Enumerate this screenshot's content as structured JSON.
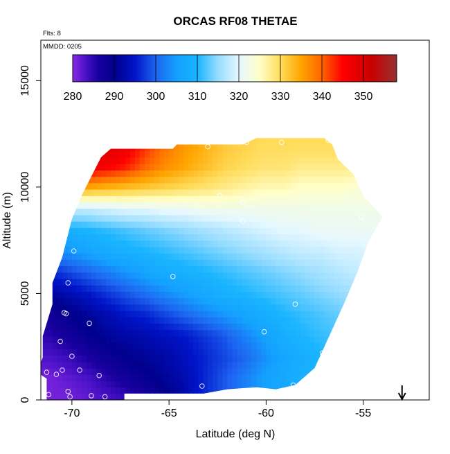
{
  "chart_data": {
    "type": "heatmap",
    "title": "ORCAS RF08 THETAE",
    "flight_note": "Flts: 8",
    "date_note": "MMDD: 0205",
    "xlabel": "Latitude (deg N)",
    "ylabel": "Altitude (m)",
    "xlim": [
      -71.6,
      -51.6
    ],
    "ylim": [
      0,
      16900
    ],
    "x_ticks": [
      -70,
      -65,
      -60,
      -55
    ],
    "x_tick_labels": [
      "-70",
      "-65",
      "-60",
      "-55"
    ],
    "y_ticks": [
      0,
      5000,
      10000,
      15000
    ],
    "y_tick_labels": [
      "0",
      "5000",
      "10000",
      "15000"
    ],
    "colorbar": {
      "range": [
        280,
        358
      ],
      "ticks": [
        280,
        290,
        300,
        310,
        320,
        330,
        340,
        350
      ],
      "tick_labels": [
        "280",
        "290",
        "300",
        "310",
        "320",
        "330",
        "340",
        "350"
      ],
      "stops": [
        {
          "v": 280,
          "c": "#8a2be2"
        },
        {
          "v": 283,
          "c": "#4b12c8"
        },
        {
          "v": 286,
          "c": "#1a00a0"
        },
        {
          "v": 290,
          "c": "#00008c"
        },
        {
          "v": 295,
          "c": "#0014c8"
        },
        {
          "v": 300,
          "c": "#1e64f0"
        },
        {
          "v": 305,
          "c": "#14a0ff"
        },
        {
          "v": 310,
          "c": "#19b4ff"
        },
        {
          "v": 315,
          "c": "#96dcff"
        },
        {
          "v": 320,
          "c": "#e6f8ff"
        },
        {
          "v": 325,
          "c": "#ffffc8"
        },
        {
          "v": 330,
          "c": "#ffdc5a"
        },
        {
          "v": 335,
          "c": "#ffa500"
        },
        {
          "v": 340,
          "c": "#ff6400"
        },
        {
          "v": 345,
          "c": "#ff0000"
        },
        {
          "v": 352,
          "c": "#c80000"
        },
        {
          "v": 358,
          "c": "#963232"
        }
      ]
    },
    "field": {
      "lat_grid": [
        -71.2,
        -70.2,
        -69.2,
        -68.2,
        -67.2,
        -66.2,
        -65.2,
        -64.2,
        -63.2,
        -62.2,
        -61.2,
        -60.2,
        -59.2,
        -58.2,
        -57.2,
        -56.2,
        -55.2,
        -54.2
      ],
      "alt_grid": [
        0,
        1000,
        2000,
        3000,
        4000,
        5000,
        6000,
        7000,
        8000,
        9000,
        10000,
        11000,
        12000
      ],
      "values": [
        [
          281,
          281,
          282,
          283,
          284,
          286,
          289,
          292,
          296,
          299,
          302,
          304,
          306,
          308,
          309,
          310,
          311,
          312
        ],
        [
          281,
          282,
          283,
          285,
          287,
          289,
          291,
          293,
          296,
          299,
          302,
          305,
          307,
          309,
          310,
          311,
          312,
          312
        ],
        [
          283,
          284,
          286,
          288,
          290,
          291,
          292,
          294,
          296,
          298,
          300,
          303,
          306,
          308,
          310,
          311,
          312,
          313
        ],
        [
          285,
          287,
          289,
          291,
          292,
          293,
          294,
          295,
          297,
          299,
          302,
          305,
          308,
          310,
          311,
          312,
          313,
          314
        ],
        [
          287,
          289,
          291,
          293,
          295,
          296,
          298,
          300,
          302,
          304,
          306,
          308,
          310,
          311,
          312,
          313,
          314,
          315
        ],
        [
          291,
          293,
          295,
          297,
          299,
          301,
          303,
          305,
          307,
          309,
          310,
          311,
          312,
          313,
          314,
          315,
          316,
          317
        ],
        [
          296,
          298,
          300,
          302,
          304,
          306,
          308,
          309,
          310,
          311,
          312,
          313,
          314,
          315,
          316,
          317,
          318,
          318
        ],
        [
          302,
          304,
          306,
          308,
          309,
          310,
          311,
          312,
          313,
          314,
          315,
          316,
          317,
          318,
          318,
          319,
          319,
          320
        ],
        [
          308,
          309,
          310,
          311,
          312,
          313,
          314,
          315,
          316,
          317,
          318,
          319,
          320,
          320,
          321,
          321,
          321,
          321
        ],
        [
          317,
          318,
          318,
          319,
          320,
          320,
          321,
          321,
          322,
          322,
          322,
          322,
          322,
          322,
          322,
          322,
          322,
          322
        ],
        [
          336,
          336,
          335,
          334,
          333,
          332,
          331,
          330,
          329,
          328,
          327,
          326,
          326,
          325,
          325,
          325,
          324,
          324
        ],
        [
          350,
          350,
          348,
          346,
          344,
          340,
          337,
          335,
          333,
          331,
          330,
          329,
          329,
          328,
          328,
          328,
          328,
          328
        ],
        [
          354,
          354,
          352,
          350,
          347,
          343,
          339,
          336,
          334,
          332,
          331,
          330,
          330,
          330,
          330,
          330,
          330,
          330
        ]
      ],
      "coverage_outline": [
        [
          -71.3,
          0
        ],
        [
          -67.3,
          0
        ],
        [
          -67.3,
          300
        ],
        [
          -63.2,
          300
        ],
        [
          -62.0,
          500
        ],
        [
          -60.5,
          600
        ],
        [
          -59.5,
          500
        ],
        [
          -58.5,
          700
        ],
        [
          -57.5,
          1500
        ],
        [
          -57.0,
          2500
        ],
        [
          -56.0,
          4500
        ],
        [
          -55.3,
          6000
        ],
        [
          -54.7,
          7500
        ],
        [
          -54.0,
          8600
        ],
        [
          -55.0,
          9600
        ],
        [
          -55.5,
          10600
        ],
        [
          -56.3,
          11300
        ],
        [
          -56.6,
          12000
        ],
        [
          -57.0,
          12300
        ],
        [
          -60.5,
          12300
        ],
        [
          -61.2,
          12000
        ],
        [
          -64.6,
          12000
        ],
        [
          -64.8,
          11800
        ],
        [
          -68.0,
          11800
        ],
        [
          -68.5,
          11400
        ],
        [
          -69.0,
          10500
        ],
        [
          -69.5,
          9600
        ],
        [
          -70.0,
          8500
        ],
        [
          -70.5,
          6700
        ],
        [
          -71.0,
          5500
        ],
        [
          -71.0,
          4500
        ],
        [
          -71.5,
          3000
        ],
        [
          -71.5,
          2000
        ],
        [
          -71.8,
          1300
        ],
        [
          -71.3,
          1000
        ]
      ]
    },
    "points": [
      [
        -71.2,
        250
      ],
      [
        -70.1,
        150
      ],
      [
        -70.2,
        400
      ],
      [
        -69.0,
        200
      ],
      [
        -68.3,
        150
      ],
      [
        -71.3,
        1300
      ],
      [
        -70.8,
        1200
      ],
      [
        -70.5,
        1400
      ],
      [
        -69.6,
        1400
      ],
      [
        -68.6,
        1150
      ],
      [
        -70.0,
        2050
      ],
      [
        -70.6,
        2750
      ],
      [
        -70.4,
        4100
      ],
      [
        -70.3,
        4050
      ],
      [
        -69.1,
        3600
      ],
      [
        -70.2,
        5500
      ],
      [
        -69.9,
        7000
      ],
      [
        -64.8,
        5800
      ],
      [
        -62.4,
        9600
      ],
      [
        -61.2,
        9300
      ],
      [
        -61.2,
        8400
      ],
      [
        -63.0,
        11900
      ],
      [
        -61.0,
        12100
      ],
      [
        -59.2,
        12100
      ],
      [
        -56.8,
        12200
      ],
      [
        -63.3,
        650
      ],
      [
        -60.1,
        3200
      ],
      [
        -58.5,
        4500
      ],
      [
        -57.1,
        2200
      ],
      [
        -58.6,
        700
      ],
      [
        -55.1,
        8600
      ]
    ],
    "arrow_latitude": -53.0
  }
}
